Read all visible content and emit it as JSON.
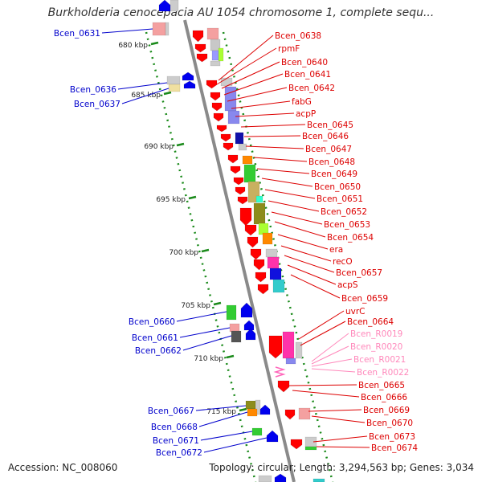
{
  "title": "Burkholderia cenocepacia AU 1054 chromosome 1, complete sequ...",
  "accession": "Accession: NC_008060",
  "topology": "Topology: circular; Length: 3,294,563 bp; Genes: 3,034",
  "scale_labels": [
    "680 kbp",
    "685 kbp",
    "690 kbp",
    "695 kbp",
    "700 kbp",
    "705 kbp",
    "710 kbp",
    "715 kbp"
  ],
  "colors": {
    "forward_label": "#0000cc",
    "reverse_label": "#dd0000",
    "rna_label": "#ff88bb",
    "backbone": "#8a8a8a",
    "ticks": "#1a8a1a"
  },
  "left_labels": [
    "Bcen_0631",
    "Bcen_0636",
    "Bcen_0637",
    "Bcen_0660",
    "Bcen_0661",
    "Bcen_0662",
    "Bcen_0667",
    "Bcen_0668",
    "Bcen_0671",
    "Bcen_0672"
  ],
  "right_labels": [
    "Bcen_0638",
    "rpmF",
    "Bcen_0640",
    "Bcen_0641",
    "Bcen_0642",
    "fabG",
    "acpP",
    "Bcen_0645",
    "Bcen_0646",
    "Bcen_0647",
    "Bcen_0648",
    "Bcen_0649",
    "Bcen_0650",
    "Bcen_0651",
    "Bcen_0652",
    "Bcen_0653",
    "Bcen_0654",
    "era",
    "recO",
    "Bcen_0657",
    "acpS",
    "Bcen_0659",
    "uvrC",
    "Bcen_0664"
  ],
  "rna_labels": [
    "Bcen_R0019",
    "Bcen_R0020",
    "Bcen_R0021",
    "Bcen_R0022"
  ],
  "right_labels_lower": [
    "Bcen_0665",
    "Bcen_0666",
    "Bcen_0669",
    "Bcen_0670",
    "Bcen_0673",
    "Bcen_0674"
  ]
}
